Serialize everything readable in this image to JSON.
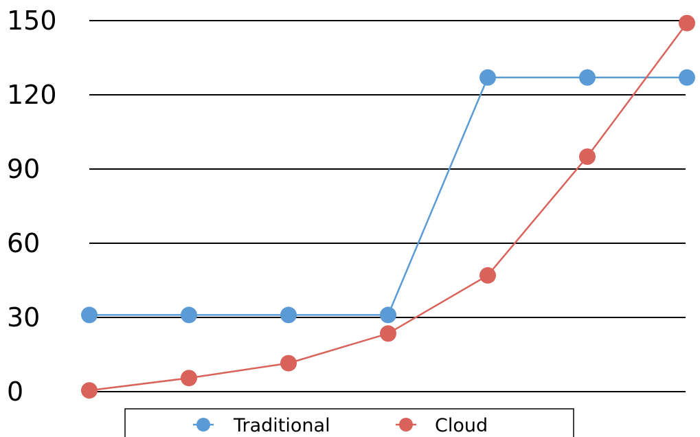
{
  "chart_data": {
    "type": "line",
    "title": "",
    "xlabel": "",
    "ylabel": "",
    "x": [
      1,
      2,
      3,
      4,
      5,
      6,
      7
    ],
    "ylim": [
      0,
      150
    ],
    "yticks": [
      "0",
      "30",
      "60",
      "90",
      "120",
      "150"
    ],
    "grid": true,
    "legend_position": "bottom",
    "series": [
      {
        "name": "Traditional",
        "color": "#5b9bd5",
        "values": [
          31,
          31,
          31,
          31,
          127,
          127,
          127
        ]
      },
      {
        "name": "Cloud",
        "color": "#d9625b",
        "values": [
          0.5,
          5.5,
          11.5,
          23.5,
          47,
          95,
          149
        ]
      }
    ]
  }
}
